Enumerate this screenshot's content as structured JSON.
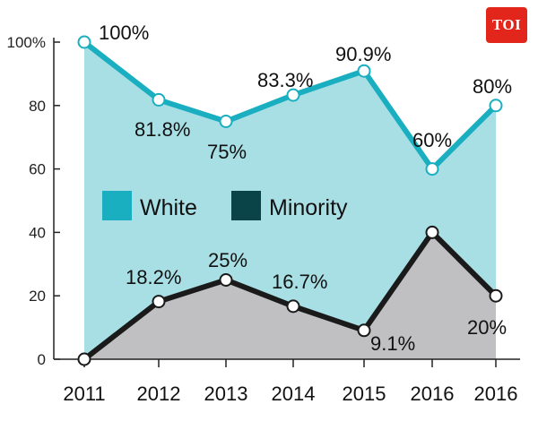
{
  "logo": {
    "text": "TOI"
  },
  "chart_data": {
    "type": "area",
    "categories": [
      "2011",
      "2012",
      "2013",
      "2014",
      "2015",
      "2016",
      "2016"
    ],
    "series": [
      {
        "name": "White",
        "color": "#1aafc0",
        "fill": "#a8dfe5",
        "values": [
          100,
          81.8,
          75,
          83.3,
          90.9,
          60,
          80
        ],
        "labels": [
          "100%",
          "81.8%",
          "75%",
          "83.3%",
          "90.9%",
          "60%",
          "80%"
        ]
      },
      {
        "name": "Minority",
        "color": "#1a1a1a",
        "fill": "#c0bfc1",
        "values": [
          0,
          18.2,
          25,
          16.7,
          9.1,
          40,
          20
        ],
        "labels": [
          "",
          "18.2%",
          "25%",
          "16.7%",
          "9.1%",
          "",
          "20%"
        ]
      }
    ],
    "legend": [
      {
        "name": "White",
        "color": "#1aafc0"
      },
      {
        "name": "Minority",
        "color": "#0a4448"
      }
    ],
    "yticks": [
      "0",
      "20",
      "40",
      "60",
      "80",
      "100%"
    ],
    "ylim": [
      0,
      100
    ],
    "grid": false,
    "legend_placement": "middle-left"
  }
}
